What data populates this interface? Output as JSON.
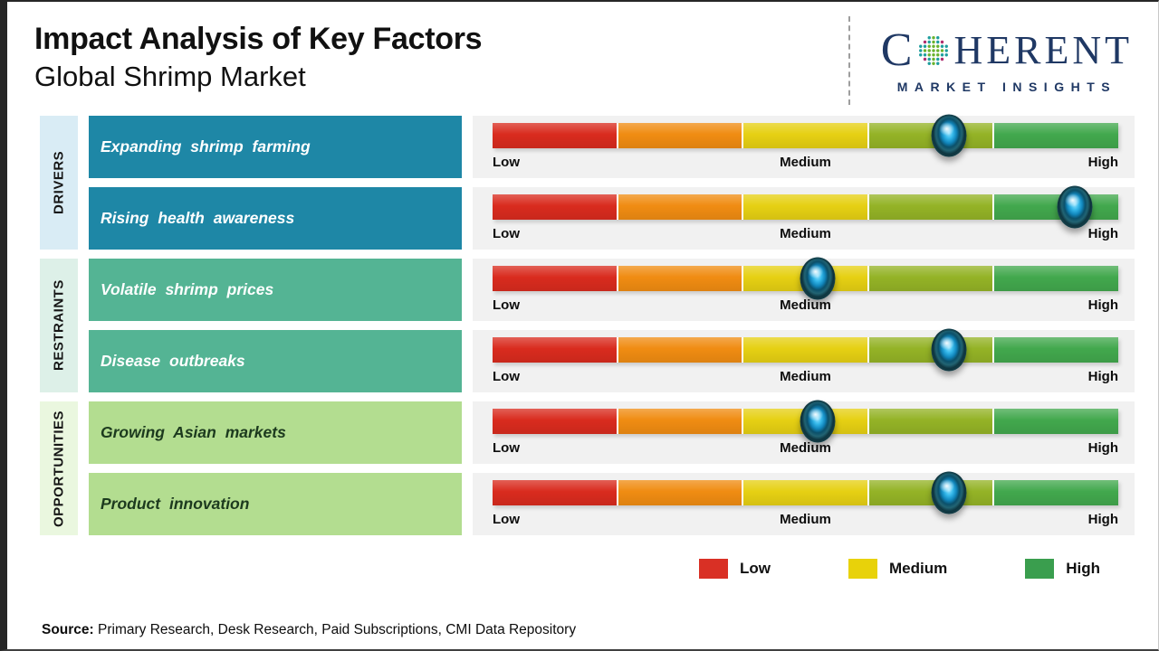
{
  "header": {
    "title": "Impact Analysis of Key Factors",
    "subtitle": "Global Shrimp Market",
    "logo": {
      "prefix": "C",
      "suffix": "HERENT",
      "tagline": "MARKET INSIGHTS",
      "color": "#1f3864",
      "globe_icon": "dotted-globe-icon"
    }
  },
  "groups": [
    {
      "label": "DRIVERS",
      "factors": [
        {
          "label": "Expanding shrimp farming",
          "marker_percent": 73
        },
        {
          "label": "Rising health awareness",
          "marker_percent": 93
        }
      ]
    },
    {
      "label": "RESTRAINTS",
      "factors": [
        {
          "label": "Volatile shrimp prices",
          "marker_percent": 52
        },
        {
          "label": "Disease outbreaks",
          "marker_percent": 73
        }
      ]
    },
    {
      "label": "OPPORTUNITIES",
      "factors": [
        {
          "label": "Growing Asian markets",
          "marker_percent": 52
        },
        {
          "label": "Product innovation",
          "marker_percent": 73
        }
      ]
    }
  ],
  "group_styles": [
    {
      "strip_bg": "#d9ecf5",
      "box_bg": "#1e87a6",
      "box_text": "#ffffff"
    },
    {
      "strip_bg": "#ddf0e8",
      "box_bg": "#54b494",
      "box_text": "#ffffff"
    },
    {
      "strip_bg": "#eaf7df",
      "box_bg": "#b3dd90",
      "box_text": "#1c3a1e"
    }
  ],
  "scale": {
    "low": "Low",
    "medium": "Medium",
    "high": "High"
  },
  "bar_segment_colors": [
    "#d92b1e",
    "#f08c12",
    "#e6d013",
    "#94b326",
    "#42a84d"
  ],
  "legend": {
    "items": [
      {
        "label": "Low",
        "color": "#d93025"
      },
      {
        "label": "Medium",
        "color": "#e8d20a"
      },
      {
        "label": "High",
        "color": "#3a9e4e"
      }
    ]
  },
  "source": {
    "label": "Source:",
    "text": " Primary Research, Desk Research, Paid Subscriptions, CMI Data Repository"
  },
  "chart_data": {
    "type": "table",
    "title": "Impact Analysis of Key Factors",
    "subtitle": "Global Shrimp Market",
    "scale": {
      "min_label": "Low",
      "mid_label": "Medium",
      "max_label": "High",
      "range_percent": [
        0,
        100
      ]
    },
    "rows": [
      {
        "category": "Drivers",
        "factor": "Expanding shrimp farming",
        "impact_percent": 73,
        "impact_rating": "Medium-High"
      },
      {
        "category": "Drivers",
        "factor": "Rising health awareness",
        "impact_percent": 93,
        "impact_rating": "High"
      },
      {
        "category": "Restraints",
        "factor": "Volatile shrimp prices",
        "impact_percent": 52,
        "impact_rating": "Medium"
      },
      {
        "category": "Restraints",
        "factor": "Disease outbreaks",
        "impact_percent": 73,
        "impact_rating": "Medium-High"
      },
      {
        "category": "Opportunities",
        "factor": "Growing Asian markets",
        "impact_percent": 52,
        "impact_rating": "Medium"
      },
      {
        "category": "Opportunities",
        "factor": "Product innovation",
        "impact_percent": 73,
        "impact_rating": "Medium-High"
      }
    ],
    "legend": [
      "Low",
      "Medium",
      "High"
    ],
    "legend_position": "bottom-right",
    "grid": false
  }
}
